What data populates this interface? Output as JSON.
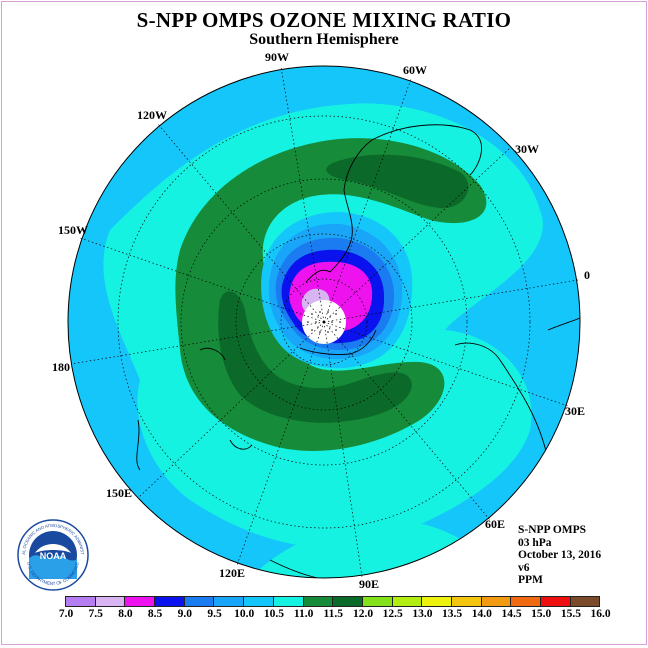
{
  "title": "S-NPP OMPS OZONE MIXING RATIO",
  "subtitle": "Southern Hemisphere",
  "longitude_labels": [
    "90W",
    "60W",
    "30W",
    "0",
    "30E",
    "60E",
    "90E",
    "120E",
    "150E",
    "180",
    "150W",
    "120W"
  ],
  "info": {
    "instrument": "S-NPP OMPS",
    "level": "03 hPa",
    "date": "October 13, 2016",
    "version": "v6",
    "units": "PPM"
  },
  "logo_text": "NOAA",
  "logo_ring_text": "NATIONAL OCEANIC AND ATMOSPHERIC ADMINISTRATION",
  "logo_ring_text2": "U.S. DEPARTMENT OF COMMERCE",
  "colorbar": {
    "ticks": [
      "7.0",
      "7.5",
      "8.0",
      "8.5",
      "9.0",
      "9.5",
      "10.0",
      "10.5",
      "11.0",
      "11.5",
      "12.0",
      "12.5",
      "13.0",
      "13.5",
      "14.0",
      "14.5",
      "15.0",
      "15.5",
      "16.0"
    ],
    "colors": [
      "#b57ef0",
      "#d8b4f2",
      "#ee12ee",
      "#0a12ee",
      "#1a7cf0",
      "#1aa6f8",
      "#15c6fb",
      "#16f2e2",
      "#168c3a",
      "#0b6a2a",
      "#84e21a",
      "#b2ee12",
      "#eef20f",
      "#f4c50e",
      "#f19a12",
      "#f06a12",
      "#ee1010",
      "#7a4a2a"
    ]
  },
  "field_colors": {
    "background_gt_10": "#15c6fb",
    "band_10_5_11": "#16f2e2",
    "band_11_11_5": "#168c3a",
    "band_11_5_12": "#0b6a2a",
    "band_9_5_10": "#1aa6f8",
    "band_9_9_5": "#1a7cf0",
    "band_8_5_9": "#0a12ee",
    "band_8_8_5": "#ee12ee",
    "band_7_5_8": "#d8b4f2"
  }
}
